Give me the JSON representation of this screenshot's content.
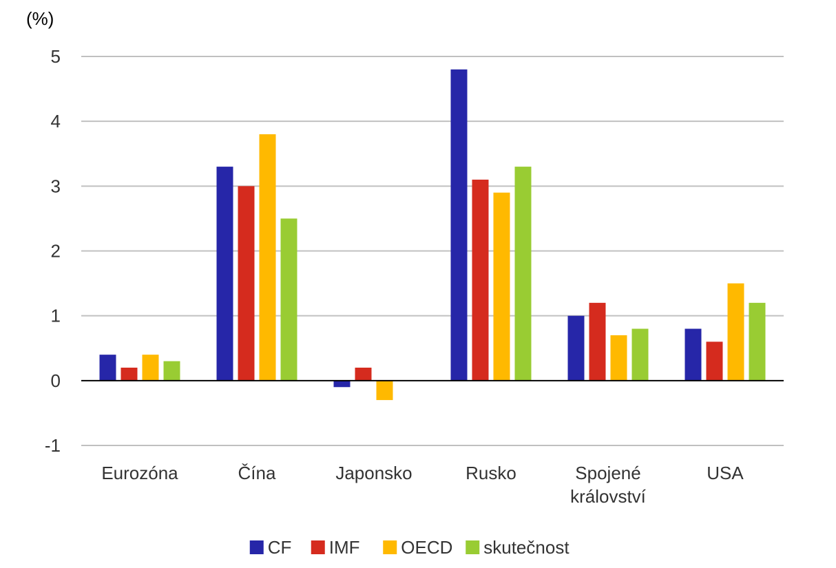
{
  "chart_data": {
    "type": "bar",
    "unit_label": "(%)",
    "categories": [
      [
        "Eurozóna"
      ],
      [
        "Čína"
      ],
      [
        "Japonsko"
      ],
      [
        "Rusko"
      ],
      [
        "Spojené",
        "království"
      ],
      [
        "USA"
      ]
    ],
    "series": [
      {
        "name": "CF",
        "color": "#2626a8",
        "values": [
          0.4,
          3.3,
          -0.1,
          4.8,
          1.0,
          0.8
        ]
      },
      {
        "name": "IMF",
        "color": "#d52b1e",
        "values": [
          0.2,
          3.0,
          0.2,
          3.1,
          1.2,
          0.6
        ]
      },
      {
        "name": "OECD",
        "color": "#ffb900",
        "values": [
          0.4,
          3.8,
          -0.3,
          2.9,
          0.7,
          1.5
        ]
      },
      {
        "name": "skutečnost",
        "color": "#99cc33",
        "values": [
          0.3,
          2.5,
          null,
          3.3,
          0.8,
          1.2
        ]
      }
    ],
    "yticks": [
      -1,
      0,
      1,
      2,
      3,
      4,
      5
    ],
    "ylim": [
      -1,
      5
    ],
    "grid": true,
    "legend_position": "bottom"
  }
}
